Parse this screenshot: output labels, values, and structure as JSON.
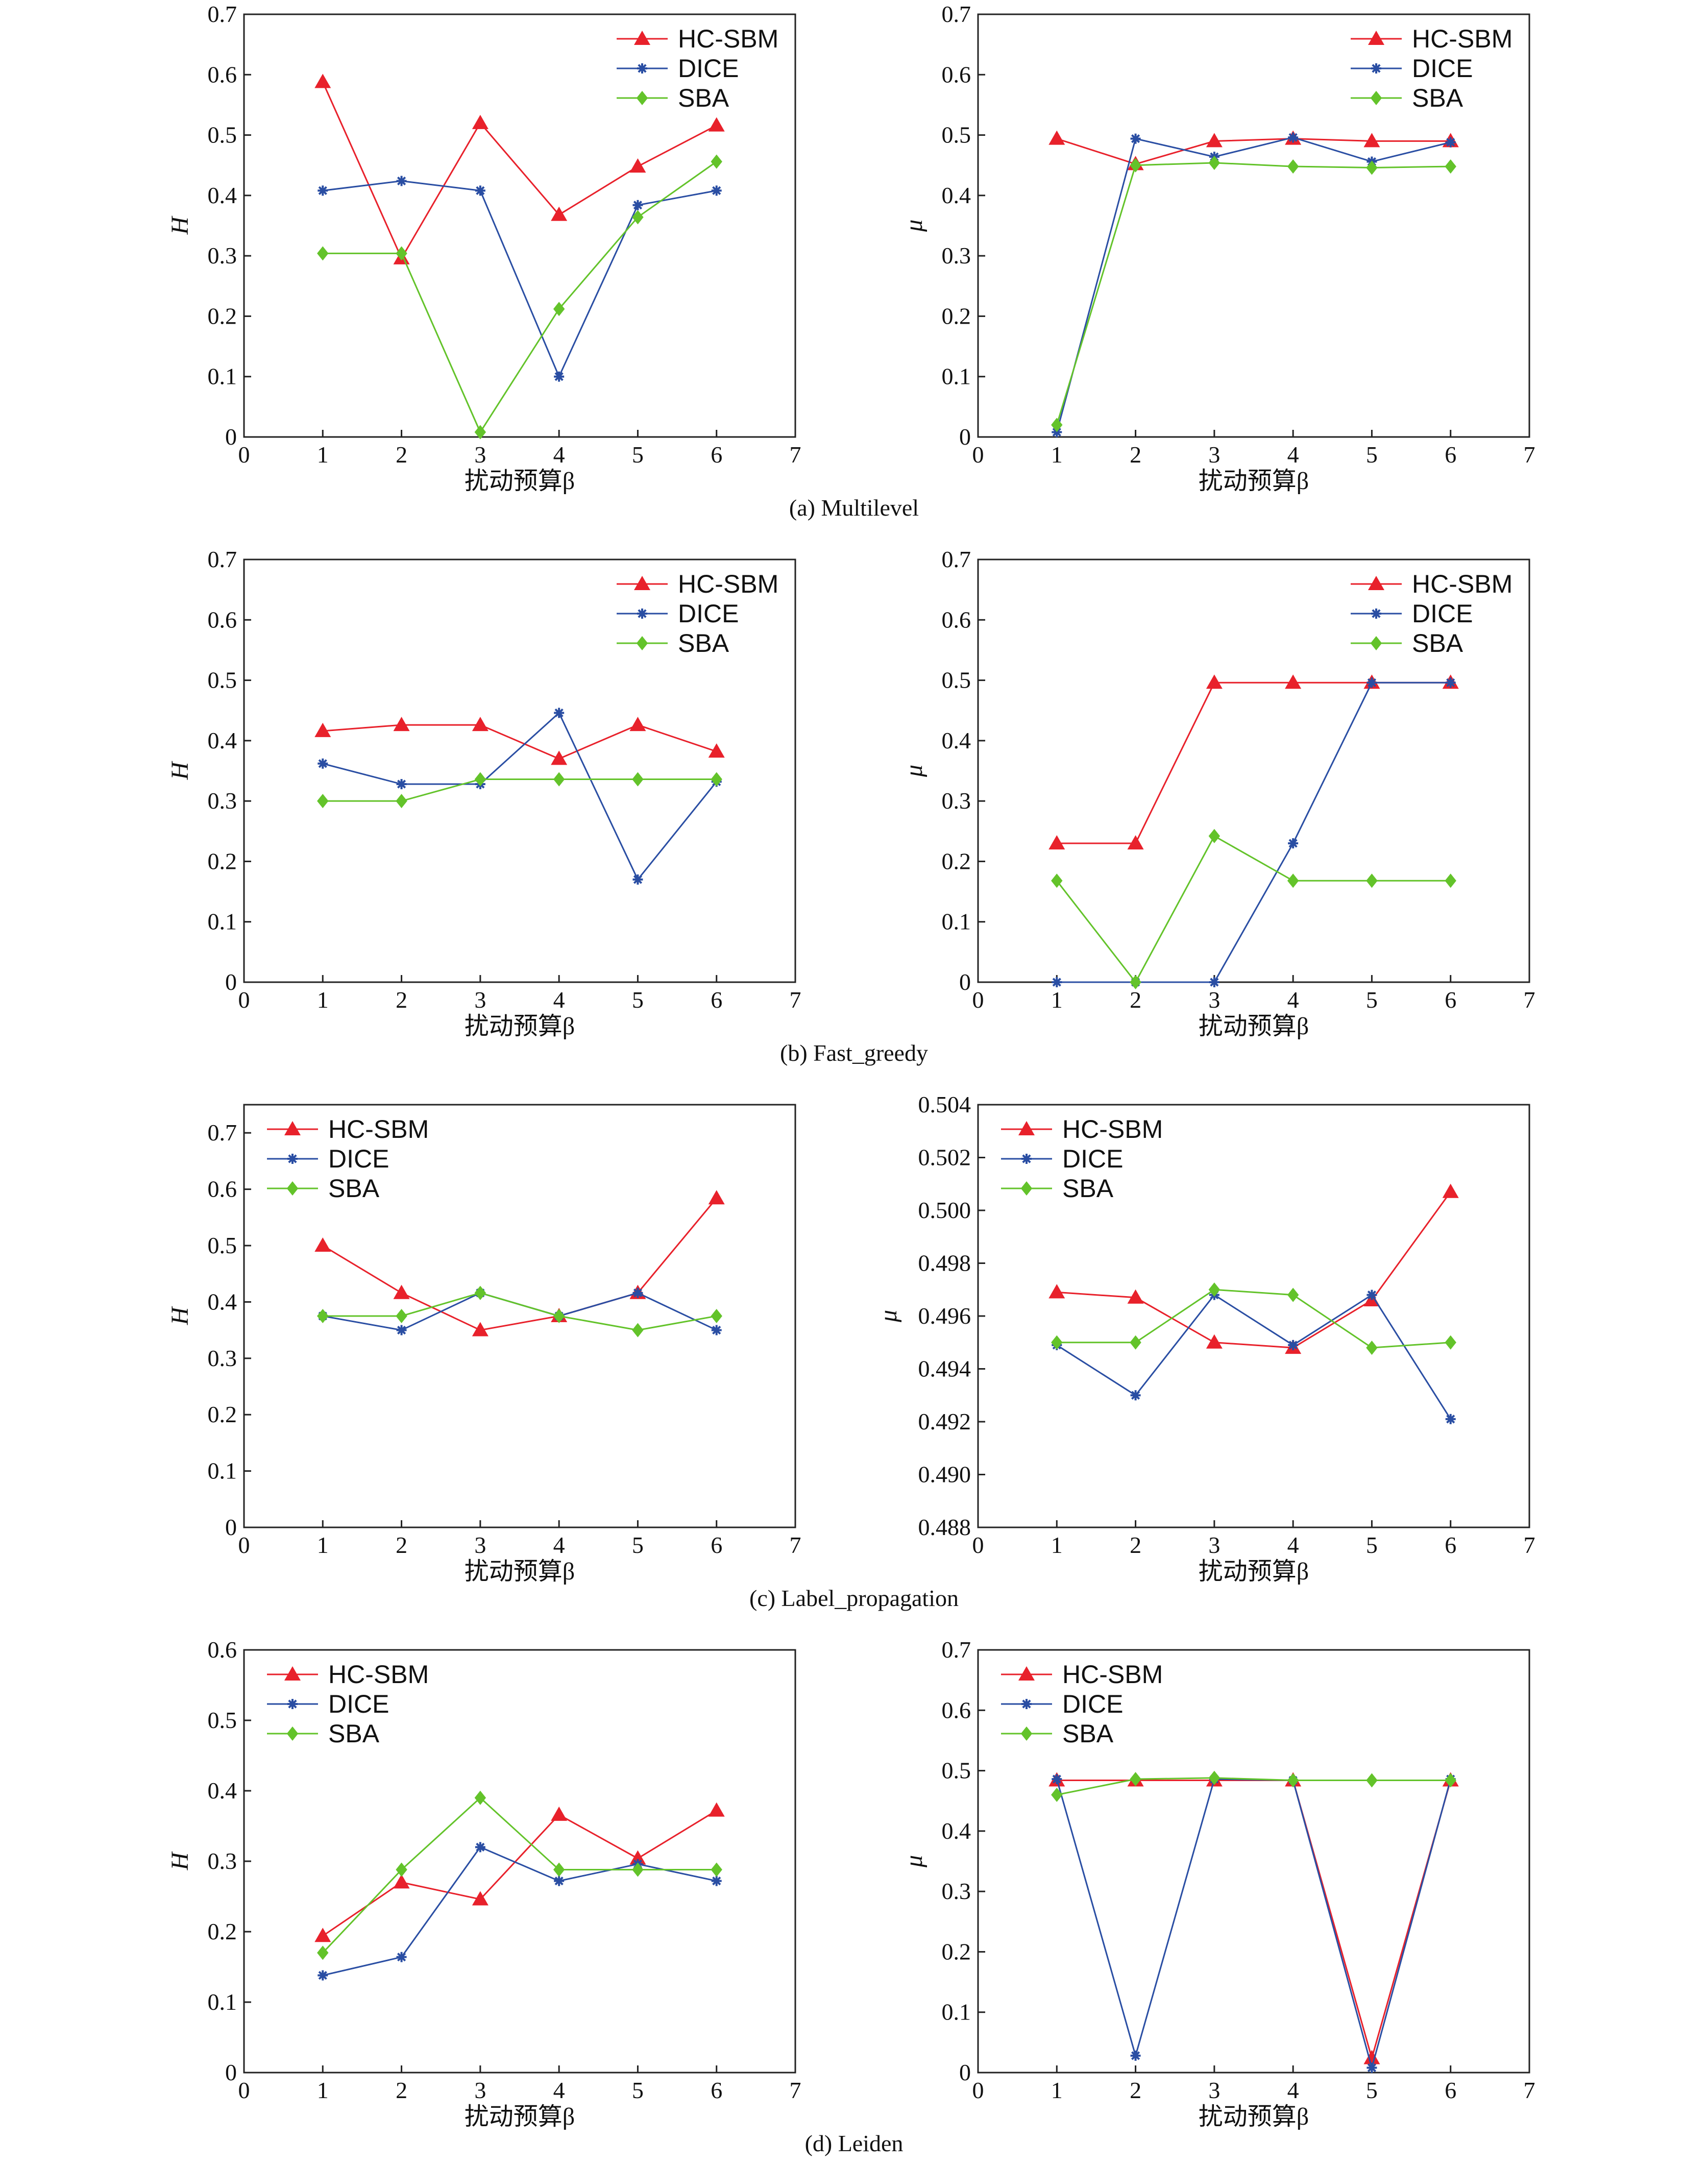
{
  "figure": {
    "colors": {
      "HC-SBM": "#e8212b",
      "DICE": "#2a4ea3",
      "SBA": "#63c32a"
    },
    "captions": [
      "(a)  Multilevel",
      "(b)  Fast_greedy",
      "(c)  Label_propagation",
      "(d)  Leiden"
    ]
  },
  "chart_data": [
    {
      "id": "a-H",
      "type": "line",
      "xlabel": "扰动预算β",
      "ylabel": "H",
      "x": [
        1,
        2,
        3,
        4,
        5,
        6
      ],
      "xlim": [
        0,
        7
      ],
      "ylim": [
        0,
        0.7
      ],
      "yticks": [
        "0",
        "0.1",
        "0.2",
        "0.3",
        "0.4",
        "0.5",
        "0.6",
        "0.7"
      ],
      "legend": "top-right",
      "series": [
        {
          "name": "HC-SBM",
          "values": [
            0.588,
            0.296,
            0.52,
            0.368,
            0.448,
            0.516
          ]
        },
        {
          "name": "DICE",
          "values": [
            0.408,
            0.424,
            0.408,
            0.1,
            0.384,
            0.408
          ]
        },
        {
          "name": "SBA",
          "values": [
            0.304,
            0.304,
            0.008,
            0.212,
            0.364,
            0.456
          ]
        }
      ]
    },
    {
      "id": "a-mu",
      "type": "line",
      "xlabel": "扰动预算β",
      "ylabel": "μ",
      "x": [
        1,
        2,
        3,
        4,
        5,
        6
      ],
      "xlim": [
        0,
        7
      ],
      "ylim": [
        0,
        0.7
      ],
      "yticks": [
        "0",
        "0.1",
        "0.2",
        "0.3",
        "0.4",
        "0.5",
        "0.6",
        "0.7"
      ],
      "legend": "top-right",
      "series": [
        {
          "name": "HC-SBM",
          "values": [
            0.494,
            0.452,
            0.49,
            0.494,
            0.49,
            0.49
          ]
        },
        {
          "name": "DICE",
          "values": [
            0.008,
            0.494,
            0.464,
            0.496,
            0.456,
            0.488
          ]
        },
        {
          "name": "SBA",
          "values": [
            0.02,
            0.45,
            0.454,
            0.448,
            0.446,
            0.448
          ]
        }
      ]
    },
    {
      "id": "b-H",
      "type": "line",
      "xlabel": "扰动预算β",
      "ylabel": "H",
      "x": [
        1,
        2,
        3,
        4,
        5,
        6
      ],
      "xlim": [
        0,
        7
      ],
      "ylim": [
        0,
        0.7
      ],
      "yticks": [
        "0",
        "0.1",
        "0.2",
        "0.3",
        "0.4",
        "0.5",
        "0.6",
        "0.7"
      ],
      "legend": "top-right",
      "series": [
        {
          "name": "HC-SBM",
          "values": [
            0.416,
            0.426,
            0.426,
            0.37,
            0.426,
            0.382
          ]
        },
        {
          "name": "DICE",
          "values": [
            0.362,
            0.328,
            0.328,
            0.446,
            0.17,
            0.332
          ]
        },
        {
          "name": "SBA",
          "values": [
            0.3,
            0.3,
            0.336,
            0.336,
            0.336,
            0.336
          ]
        }
      ]
    },
    {
      "id": "b-mu",
      "type": "line",
      "xlabel": "扰动预算β",
      "ylabel": "μ",
      "x": [
        1,
        2,
        3,
        4,
        5,
        6
      ],
      "xlim": [
        0,
        7
      ],
      "ylim": [
        0,
        0.7
      ],
      "yticks": [
        "0",
        "0.1",
        "0.2",
        "0.3",
        "0.4",
        "0.5",
        "0.6",
        "0.7"
      ],
      "legend": "top-right",
      "series": [
        {
          "name": "HC-SBM",
          "values": [
            0.23,
            0.23,
            0.496,
            0.496,
            0.496,
            0.496
          ]
        },
        {
          "name": "DICE",
          "values": [
            0,
            0,
            0,
            0.23,
            0.496,
            0.496
          ]
        },
        {
          "name": "SBA",
          "values": [
            0.168,
            0,
            0.242,
            0.168,
            0.168,
            0.168
          ]
        }
      ]
    },
    {
      "id": "c-H",
      "type": "line",
      "xlabel": "扰动预算β",
      "ylabel": "H",
      "x": [
        1,
        2,
        3,
        4,
        5,
        6
      ],
      "xlim": [
        0,
        7
      ],
      "ylim": [
        0,
        0.75
      ],
      "yticks": [
        "0",
        "0.1",
        "0.2",
        "0.3",
        "0.4",
        "0.5",
        "0.6",
        "0.7"
      ],
      "legend": "top-left",
      "series": [
        {
          "name": "HC-SBM",
          "values": [
            0.5,
            0.416,
            0.35,
            0.375,
            0.416,
            0.584
          ]
        },
        {
          "name": "DICE",
          "values": [
            0.375,
            0.35,
            0.416,
            0.375,
            0.416,
            0.35
          ]
        },
        {
          "name": "SBA",
          "values": [
            0.375,
            0.375,
            0.416,
            0.375,
            0.35,
            0.375
          ]
        }
      ]
    },
    {
      "id": "c-mu",
      "type": "line",
      "xlabel": "扰动预算β",
      "ylabel": "μ",
      "x": [
        1,
        2,
        3,
        4,
        5,
        6
      ],
      "xlim": [
        0,
        7
      ],
      "ylim": [
        0.488,
        0.504
      ],
      "yticks": [
        "0.488",
        "0.490",
        "0.492",
        "0.494",
        "0.496",
        "0.498",
        "0.500",
        "0.502",
        "0.504"
      ],
      "legend": "top-left",
      "series": [
        {
          "name": "HC-SBM",
          "values": [
            0.4969,
            0.4967,
            0.495,
            0.4948,
            0.4966,
            0.5007
          ]
        },
        {
          "name": "DICE",
          "values": [
            0.4949,
            0.493,
            0.4968,
            0.4949,
            0.4968,
            0.4921
          ]
        },
        {
          "name": "SBA",
          "values": [
            0.495,
            0.495,
            0.497,
            0.4968,
            0.4948,
            0.495
          ]
        }
      ]
    },
    {
      "id": "d-H",
      "type": "line",
      "xlabel": "扰动预算β",
      "ylabel": "H",
      "x": [
        1,
        2,
        3,
        4,
        5,
        6
      ],
      "xlim": [
        0,
        7
      ],
      "ylim": [
        0,
        0.6
      ],
      "yticks": [
        "0",
        "0.1",
        "0.2",
        "0.3",
        "0.4",
        "0.5",
        "0.6"
      ],
      "legend": "top-left",
      "series": [
        {
          "name": "HC-SBM",
          "values": [
            0.194,
            0.27,
            0.246,
            0.366,
            0.304,
            0.372
          ]
        },
        {
          "name": "DICE",
          "values": [
            0.138,
            0.164,
            0.32,
            0.272,
            0.296,
            0.272
          ]
        },
        {
          "name": "SBA",
          "values": [
            0.17,
            0.288,
            0.39,
            0.288,
            0.288,
            0.288
          ]
        }
      ]
    },
    {
      "id": "d-mu",
      "type": "line",
      "xlabel": "扰动预算β",
      "ylabel": "μ",
      "x": [
        1,
        2,
        3,
        4,
        5,
        6
      ],
      "xlim": [
        0,
        7
      ],
      "ylim": [
        0,
        0.7
      ],
      "yticks": [
        "0",
        "0.1",
        "0.2",
        "0.3",
        "0.4",
        "0.5",
        "0.6",
        "0.7"
      ],
      "legend": "top-left",
      "series": [
        {
          "name": "HC-SBM",
          "values": [
            0.484,
            0.484,
            0.484,
            0.484,
            0.024,
            0.484
          ]
        },
        {
          "name": "DICE",
          "values": [
            0.486,
            0.028,
            0.486,
            0.484,
            0.008,
            0.486
          ]
        },
        {
          "name": "SBA",
          "values": [
            0.46,
            0.486,
            0.488,
            0.484,
            0.484,
            0.484
          ]
        }
      ]
    }
  ]
}
